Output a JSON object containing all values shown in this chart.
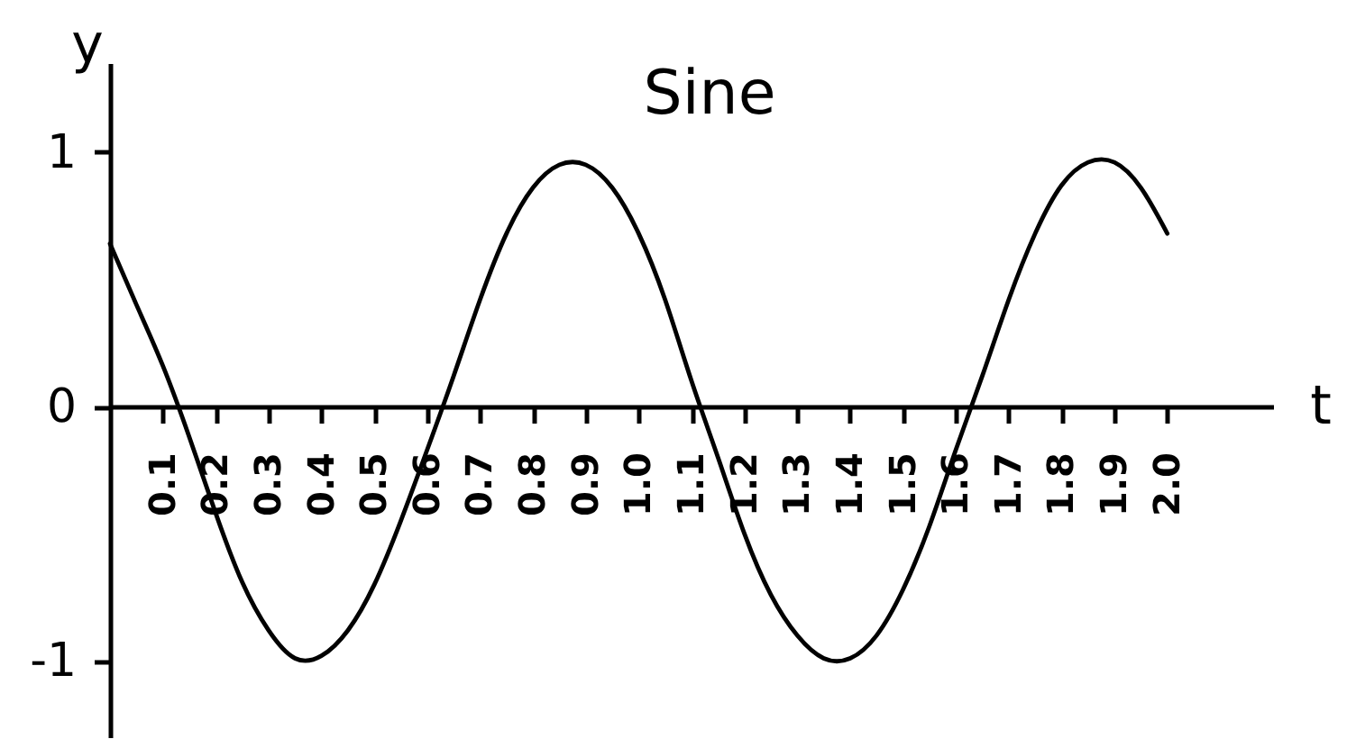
{
  "chart_data": {
    "type": "line",
    "title": "Sine",
    "xlabel": "t",
    "ylabel": "y",
    "x": [
      0,
      0.05,
      0.1,
      0.15,
      0.2,
      0.25,
      0.3,
      0.35,
      0.4,
      0.45,
      0.5,
      0.55,
      0.6,
      0.65,
      0.7,
      0.75,
      0.8,
      0.85,
      0.9,
      0.95,
      1.0,
      1.05,
      1.1,
      1.15,
      1.2,
      1.25,
      1.3,
      1.35,
      1.4,
      1.45,
      1.5,
      1.55,
      1.6,
      1.65,
      1.7,
      1.75,
      1.8,
      1.85,
      1.9,
      1.95,
      2.0
    ],
    "series": [
      {
        "color": "#000000",
        "values": [
          0.64,
          0.4,
          0.16,
          -0.12,
          -0.42,
          -0.69,
          -0.88,
          -0.99,
          -0.98,
          -0.88,
          -0.7,
          -0.45,
          -0.17,
          0.12,
          0.42,
          0.68,
          0.86,
          0.95,
          0.95,
          0.86,
          0.68,
          0.42,
          0.1,
          -0.2,
          -0.5,
          -0.74,
          -0.9,
          -0.99,
          -0.99,
          -0.9,
          -0.72,
          -0.47,
          -0.17,
          0.12,
          0.42,
          0.68,
          0.87,
          0.96,
          0.96,
          0.86,
          0.68
        ]
      }
    ],
    "xlim": [
      0,
      2.2
    ],
    "ylim": [
      -1.3,
      1.35
    ],
    "xticks": [
      0.1,
      0.2,
      0.3,
      0.4,
      0.5,
      0.6,
      0.7,
      0.8,
      0.9,
      {
        "value": 1,
        "label": "1.0"
      },
      1.1,
      1.2,
      1.3,
      1.4,
      1.5,
      1.6,
      1.7,
      1.8,
      1.9,
      {
        "value": 2,
        "label": "2.0"
      }
    ],
    "yticks": [
      -1,
      0,
      1
    ],
    "grid": false,
    "marker": "none",
    "line_style": "solid"
  }
}
